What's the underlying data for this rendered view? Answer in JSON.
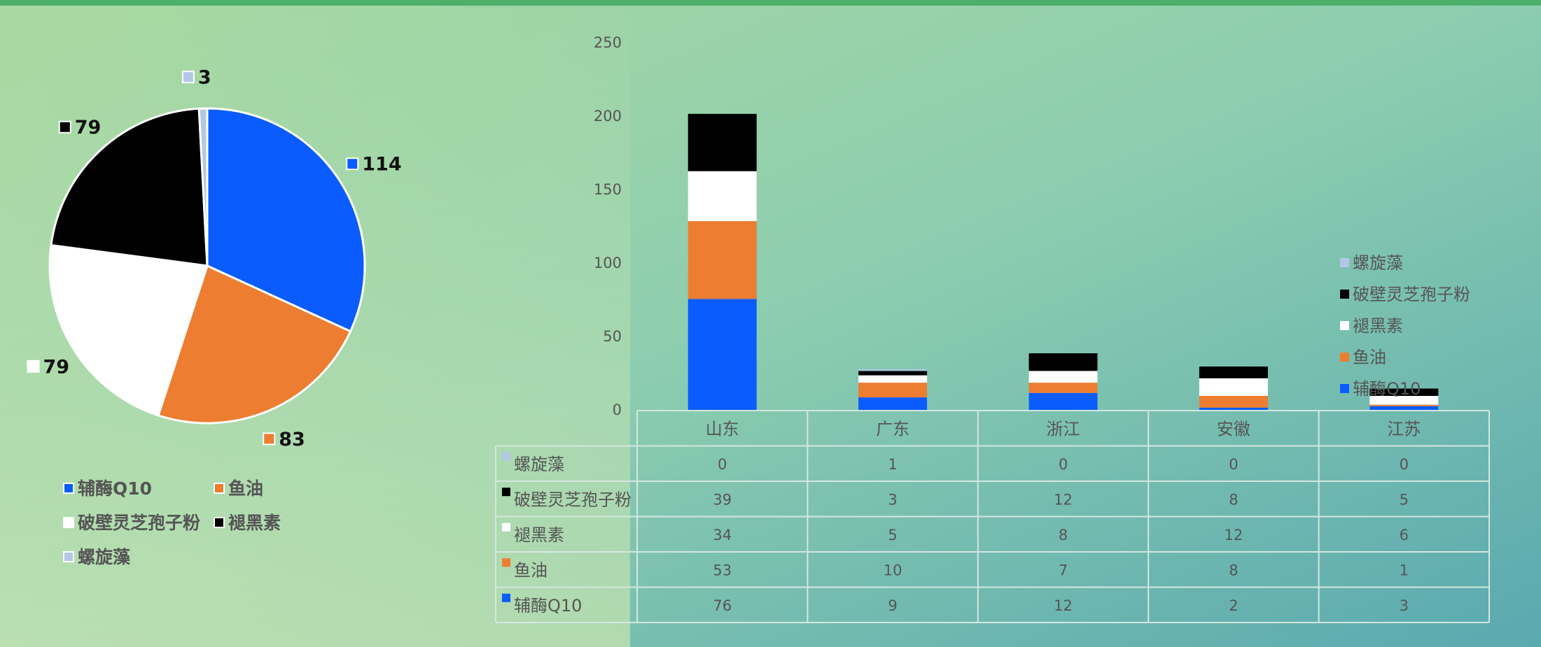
{
  "chart_data": [
    {
      "type": "pie",
      "categories": [
        "辅酶Q10",
        "鱼油",
        "破壁灵芝孢子粉",
        "褪黑素",
        "螺旋藻"
      ],
      "values": [
        114,
        83,
        79,
        79,
        3
      ],
      "colors": [
        "#0a5cff",
        "#ed7d31",
        "#ffffff",
        "#000000",
        "#b4c7e7"
      ]
    },
    {
      "type": "stacked-bar",
      "categories": [
        "山东",
        "广东",
        "浙江",
        "安徽",
        "江苏"
      ],
      "series": [
        {
          "name": "辅酶Q10",
          "color": "#0a5cff",
          "values": [
            76,
            9,
            12,
            2,
            3
          ]
        },
        {
          "name": "鱼油",
          "color": "#ed7d31",
          "values": [
            53,
            10,
            7,
            8,
            1
          ]
        },
        {
          "name": "褪黑素",
          "color": "#ffffff",
          "values": [
            34,
            5,
            8,
            12,
            6
          ]
        },
        {
          "name": "破壁灵芝孢子粉",
          "color": "#000000",
          "values": [
            39,
            3,
            12,
            8,
            5
          ]
        },
        {
          "name": "螺旋藻",
          "color": "#b4c7e7",
          "values": [
            0,
            1,
            0,
            0,
            0
          ]
        }
      ],
      "ylim": [
        0,
        250
      ],
      "yticks": [
        0,
        50,
        100,
        150,
        200,
        250
      ]
    }
  ]
}
